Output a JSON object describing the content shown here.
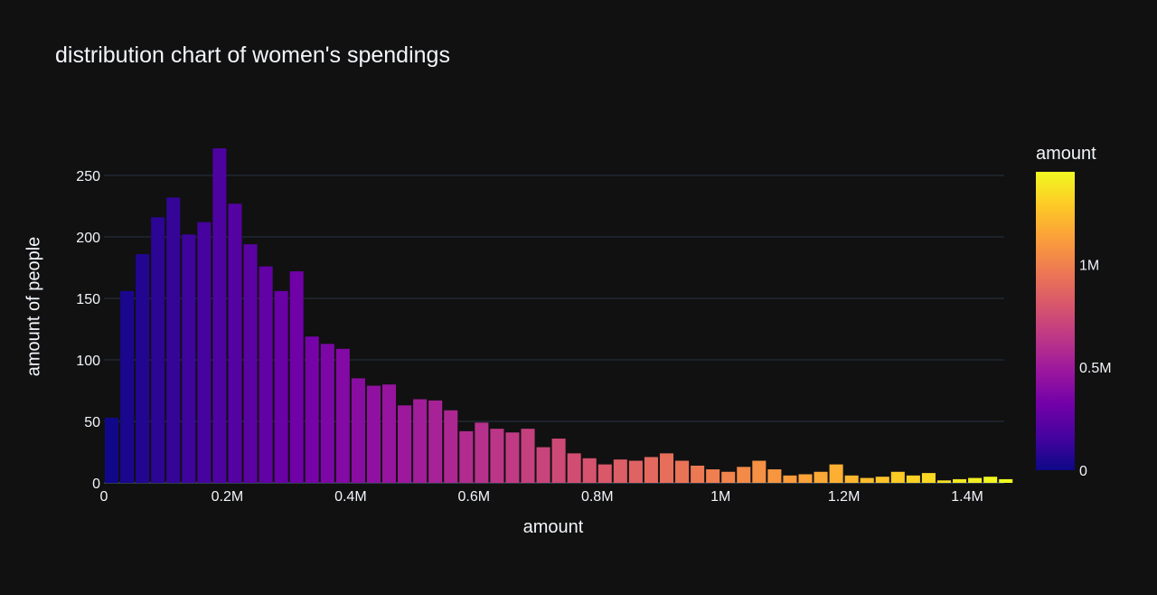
{
  "chart_data": {
    "type": "bar",
    "title": "distribution chart of women's spendings",
    "xlabel": "amount",
    "ylabel": "amount of people",
    "xlim": [
      0,
      1460000
    ],
    "ylim": [
      0,
      275
    ],
    "bin_width": 25000,
    "x_ticks": [
      {
        "value": 0,
        "label": "0"
      },
      {
        "value": 200000,
        "label": "0.2M"
      },
      {
        "value": 400000,
        "label": "0.4M"
      },
      {
        "value": 600000,
        "label": "0.6M"
      },
      {
        "value": 800000,
        "label": "0.8M"
      },
      {
        "value": 1000000,
        "label": "1M"
      },
      {
        "value": 1200000,
        "label": "1.2M"
      },
      {
        "value": 1400000,
        "label": "1.4M"
      }
    ],
    "y_ticks": [
      {
        "value": 0,
        "label": "0"
      },
      {
        "value": 50,
        "label": "50"
      },
      {
        "value": 100,
        "label": "100"
      },
      {
        "value": 150,
        "label": "150"
      },
      {
        "value": 200,
        "label": "200"
      },
      {
        "value": 250,
        "label": "250"
      }
    ],
    "x": [
      0,
      25000,
      50000,
      75000,
      100000,
      125000,
      150000,
      175000,
      200000,
      225000,
      250000,
      275000,
      300000,
      325000,
      350000,
      375000,
      400000,
      425000,
      450000,
      475000,
      500000,
      525000,
      550000,
      575000,
      600000,
      625000,
      650000,
      675000,
      700000,
      725000,
      750000,
      775000,
      800000,
      825000,
      850000,
      875000,
      900000,
      925000,
      950000,
      975000,
      1000000,
      1025000,
      1050000,
      1075000,
      1100000,
      1125000,
      1150000,
      1175000,
      1200000,
      1225000,
      1250000,
      1275000,
      1300000,
      1325000,
      1350000,
      1375000,
      1400000,
      1425000,
      1450000
    ],
    "values": [
      53,
      156,
      186,
      216,
      232,
      202,
      212,
      272,
      227,
      194,
      176,
      156,
      172,
      119,
      113,
      109,
      85,
      79,
      80,
      63,
      68,
      67,
      59,
      42,
      49,
      44,
      41,
      44,
      29,
      36,
      24,
      20,
      15,
      19,
      18,
      21,
      24,
      18,
      14,
      11,
      9,
      13,
      18,
      11,
      6,
      7,
      9,
      15,
      6,
      4,
      5,
      9,
      6,
      8,
      2,
      3,
      4,
      5,
      3
    ],
    "grid": true,
    "colorbar": {
      "title": "amount",
      "range": [
        0,
        1450000
      ],
      "ticks": [
        {
          "value": 0,
          "label": "0"
        },
        {
          "value": 500000,
          "label": "0.5M"
        },
        {
          "value": 1000000,
          "label": "1M"
        }
      ],
      "colors": [
        "#0d0887",
        "#46039f",
        "#7201a8",
        "#9c179e",
        "#bd3786",
        "#d8576b",
        "#ed7953",
        "#fb9f3a",
        "#fdca26",
        "#f0f921"
      ]
    }
  }
}
